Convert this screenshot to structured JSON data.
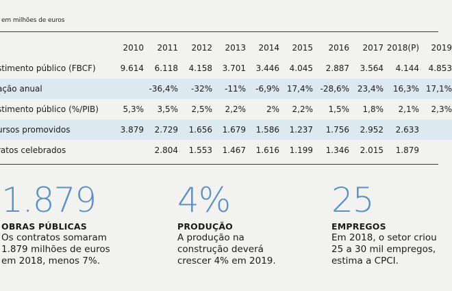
{
  "table": {
    "unit_note": "em milhões de euros",
    "years": [
      "2010",
      "2011",
      "2012",
      "2013",
      "2014",
      "2015",
      "2016",
      "2017",
      "2018(P)",
      "2019"
    ],
    "rows": [
      {
        "label": "stimento público (FBCF)",
        "values": [
          "9.614",
          "6.118",
          "4.158",
          "3.701",
          "3.446",
          "4.045",
          "2.887",
          "3.564",
          "4.144",
          "4.853"
        ]
      },
      {
        "label": "ação anual",
        "values": [
          "",
          "-36,4%",
          "-32%",
          "-11%",
          "-6,9%",
          "17,4%",
          "-28,6%",
          "23,4%",
          "16,3%",
          "17,1%"
        ]
      },
      {
        "label": "stimento público (%/PIB)",
        "values": [
          "5,3%",
          "3,5%",
          "2,5%",
          "2,2%",
          "2%",
          "2,2%",
          "1,5%",
          "1,8%",
          "2,1%",
          "2,3%"
        ]
      },
      {
        "label": "ursos promovidos",
        "values": [
          "3.879",
          "2.729",
          "1.656",
          "1.679",
          "1.586",
          "1.237",
          "1.756",
          "2.952",
          "2.633",
          ""
        ]
      },
      {
        "label": "ratos celebrados",
        "values": [
          "",
          "2.804",
          "1.553",
          "1.467",
          "1.616",
          "1.199",
          "1.346",
          "2.015",
          "1.879",
          ""
        ]
      }
    ]
  },
  "stats": [
    {
      "number": "1.879",
      "heading": "OBRAS PÚBLICAS",
      "lines": [
        "Os contratos somaram",
        "1.879 milhões de euros",
        "em 2018, menos 7%."
      ]
    },
    {
      "number": "4%",
      "heading": "PRODUÇÃO",
      "lines": [
        "A produção na",
        "construção deverá",
        "crescer 4% em 2019."
      ]
    },
    {
      "number": "25",
      "heading": "EMPREGOS",
      "lines": [
        "Em 2018, o setor criou",
        "25 a 30 mil empregos,",
        "estima a CPCI."
      ]
    }
  ],
  "colors": {
    "accent": "#5b8fc3",
    "band": "#dde9f1"
  }
}
